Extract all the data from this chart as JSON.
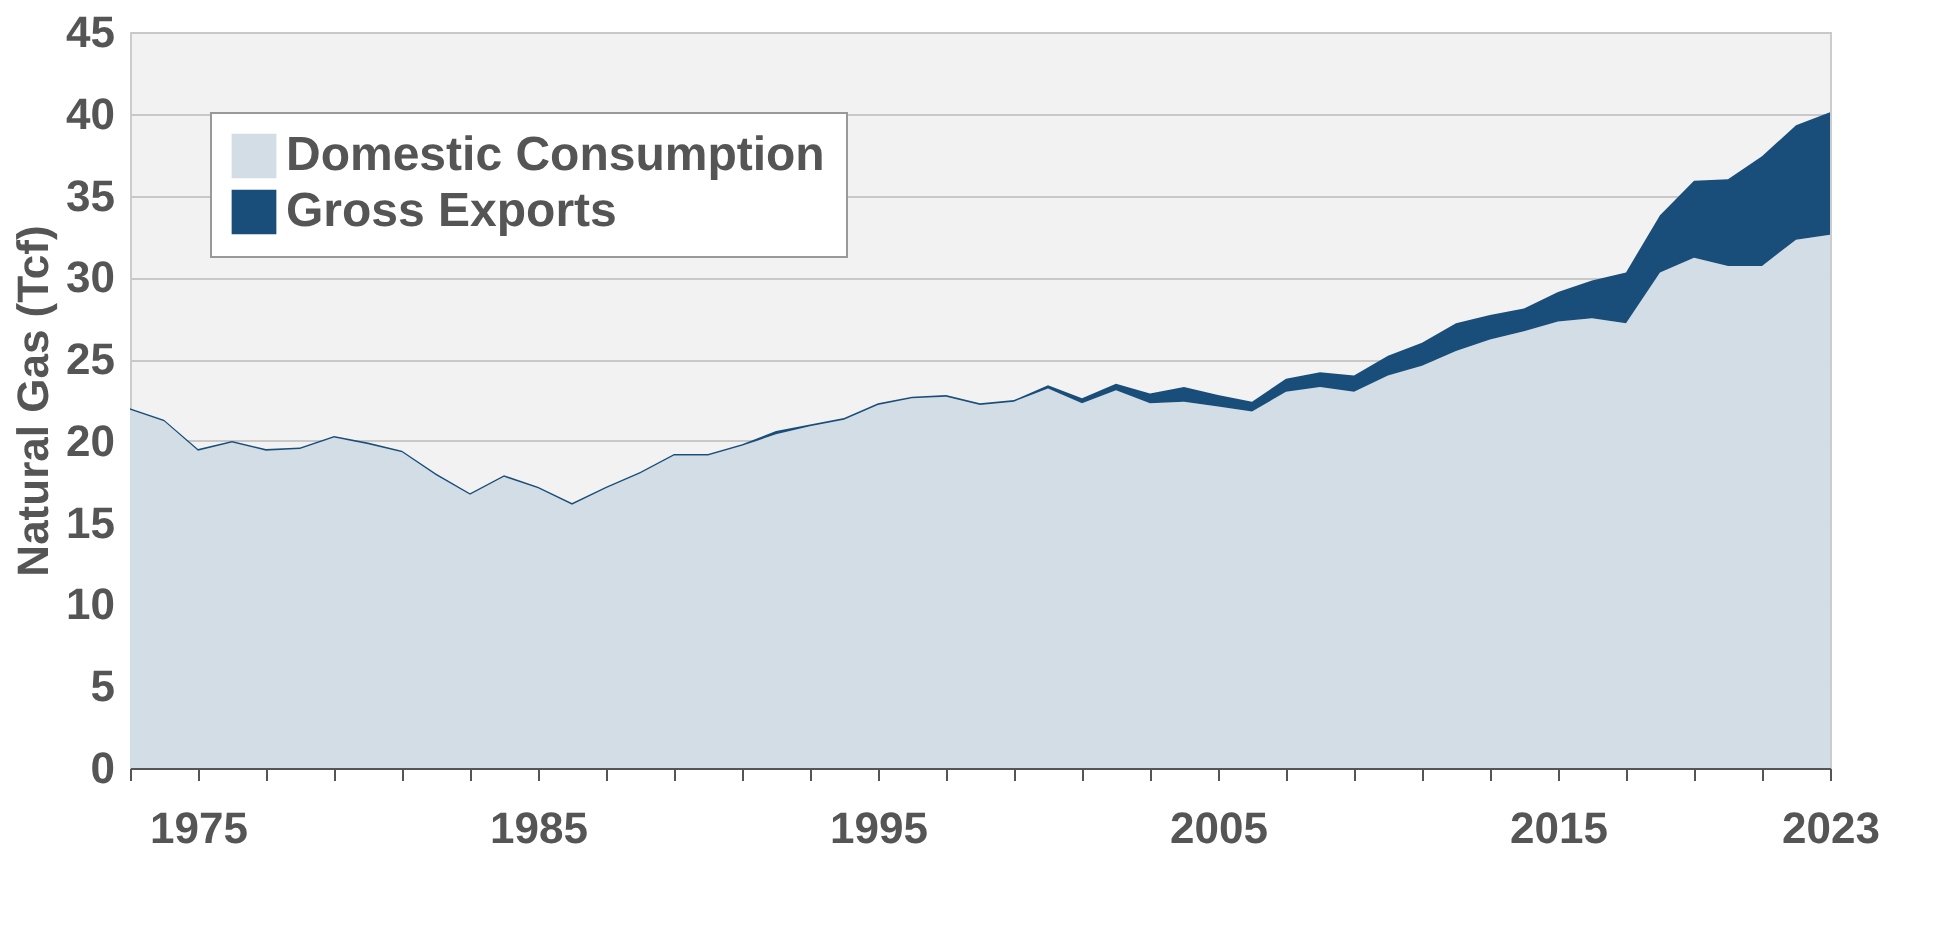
{
  "chart_data": {
    "type": "area",
    "stacked": true,
    "ylabel": "Natural Gas (Tcf)",
    "x": [
      1973,
      1974,
      1975,
      1976,
      1977,
      1978,
      1979,
      1980,
      1981,
      1982,
      1983,
      1984,
      1985,
      1986,
      1987,
      1988,
      1989,
      1990,
      1991,
      1992,
      1993,
      1994,
      1995,
      1996,
      1997,
      1998,
      1999,
      2000,
      2001,
      2002,
      2003,
      2004,
      2005,
      2006,
      2007,
      2008,
      2009,
      2010,
      2011,
      2012,
      2013,
      2014,
      2015,
      2016,
      2017,
      2018,
      2019,
      2020,
      2021,
      2022,
      2023
    ],
    "series": [
      {
        "name": "Domestic Consumption",
        "color": "#d3dde6",
        "values": [
          21.9,
          21.2,
          19.4,
          19.9,
          19.4,
          19.5,
          20.2,
          19.8,
          19.3,
          17.9,
          16.7,
          17.8,
          17.1,
          16.1,
          17.1,
          18.0,
          19.1,
          19.1,
          19.7,
          20.4,
          20.9,
          21.3,
          22.2,
          22.6,
          22.7,
          22.2,
          22.4,
          23.2,
          22.3,
          23.1,
          22.3,
          22.4,
          22.1,
          21.8,
          23.0,
          23.3,
          23.0,
          24.0,
          24.6,
          25.5,
          26.2,
          26.7,
          27.3,
          27.5,
          27.2,
          30.3,
          31.2,
          30.7,
          30.7,
          32.3,
          32.6
        ]
      },
      {
        "name": "Gross Exports",
        "color": "#1a4e7a",
        "values": [
          0.1,
          0.1,
          0.1,
          0.1,
          0.1,
          0.1,
          0.1,
          0.1,
          0.1,
          0.1,
          0.1,
          0.1,
          0.1,
          0.1,
          0.1,
          0.1,
          0.1,
          0.1,
          0.1,
          0.2,
          0.1,
          0.1,
          0.1,
          0.1,
          0.1,
          0.1,
          0.1,
          0.2,
          0.3,
          0.4,
          0.6,
          0.9,
          0.7,
          0.6,
          0.8,
          0.9,
          1.0,
          1.2,
          1.4,
          1.7,
          1.5,
          1.4,
          1.8,
          2.3,
          3.1,
          3.5,
          4.7,
          5.3,
          6.7,
          7.0,
          7.5
        ]
      }
    ],
    "xlim": [
      1973,
      2023
    ],
    "xticks": [
      {
        "value": 1973,
        "label": null
      },
      1975,
      {
        "value": 1977,
        "label": null
      },
      {
        "value": 1979,
        "label": null
      },
      {
        "value": 1981,
        "label": null
      },
      {
        "value": 1983,
        "label": null
      },
      1985,
      {
        "value": 1987,
        "label": null
      },
      {
        "value": 1989,
        "label": null
      },
      {
        "value": 1991,
        "label": null
      },
      {
        "value": 1993,
        "label": null
      },
      1995,
      {
        "value": 1997,
        "label": null
      },
      {
        "value": 1999,
        "label": null
      },
      {
        "value": 2001,
        "label": null
      },
      {
        "value": 2003,
        "label": null
      },
      2005,
      {
        "value": 2007,
        "label": null
      },
      {
        "value": 2009,
        "label": null
      },
      {
        "value": 2011,
        "label": null
      },
      {
        "value": 2013,
        "label": null
      },
      2015,
      {
        "value": 2017,
        "label": null
      },
      {
        "value": 2019,
        "label": null
      },
      {
        "value": 2021,
        "label": null
      },
      2023
    ],
    "ylim": [
      0,
      45
    ],
    "yticks": [
      0,
      5,
      10,
      15,
      20,
      25,
      30,
      35,
      40,
      45
    ],
    "grid": "y",
    "legend": "top left"
  }
}
